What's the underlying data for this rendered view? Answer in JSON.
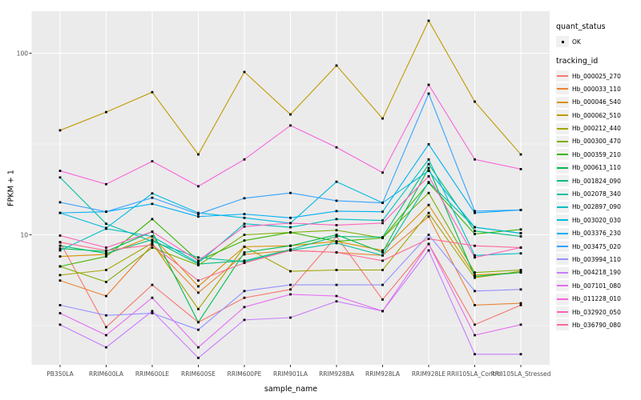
{
  "chart_data": {
    "type": "line",
    "xlabel": "sample_name",
    "ylabel": "FPKM + 1",
    "y_scale": "log10",
    "y_major_ticks": [
      10,
      100
    ],
    "y_tick_labels": [
      "10",
      "100"
    ],
    "y_minor_ticks": [
      3.162,
      31.62
    ],
    "ylim": [
      1.7,
      180
    ],
    "grid": "on",
    "legend_position": "right",
    "point_shape": "small-black-square",
    "categories": [
      "PB350LA",
      "RRIM600LA",
      "RRIM600LE",
      "RRIM600SE",
      "RRIM600PE",
      "RRIM901LA",
      "RRIM928BA",
      "RRIM928LA",
      "RRIM928LE",
      "RRII105LA_Control",
      "RRII105LA_Stressed"
    ],
    "series": [
      {
        "name": "Hb_000025_270",
        "color": "#F8766D",
        "values": [
          9.1,
          3.1,
          5.3,
          3.3,
          4.5,
          5.0,
          9.8,
          4.4,
          8.9,
          3.2,
          4.1
        ]
      },
      {
        "name": "Hb_000033_110",
        "color": "#EA8331",
        "values": [
          5.6,
          4.6,
          8.8,
          4.8,
          7.8,
          8.2,
          8.0,
          7.7,
          12.6,
          4.1,
          4.2
        ]
      },
      {
        "name": "Hb_000046_540",
        "color": "#D89000",
        "values": [
          7.6,
          7.8,
          9.8,
          5.2,
          8.6,
          8.7,
          9.2,
          8.2,
          14.6,
          6.0,
          6.2
        ]
      },
      {
        "name": "Hb_000062_510",
        "color": "#C09B00",
        "values": [
          37.6,
          47.4,
          61.0,
          27.7,
          78.8,
          46.0,
          85.5,
          43.7,
          151.0,
          54.1,
          27.7
        ]
      },
      {
        "name": "Hb_000212_440",
        "color": "#A3A500",
        "values": [
          6.0,
          6.4,
          9.0,
          3.9,
          8.6,
          6.3,
          6.4,
          6.4,
          13.2,
          5.8,
          6.3
        ]
      },
      {
        "name": "Hb_000300_470",
        "color": "#7CAE00",
        "values": [
          6.7,
          5.5,
          8.5,
          6.8,
          10.0,
          10.3,
          10.6,
          9.6,
          17.0,
          6.2,
          6.4
        ]
      },
      {
        "name": "Hb_000359_210",
        "color": "#39B600",
        "values": [
          6.7,
          7.6,
          12.2,
          7.2,
          9.3,
          10.3,
          9.2,
          9.6,
          19.3,
          10.1,
          10.7
        ]
      },
      {
        "name": "Hb_000613_110",
        "color": "#00BB4E",
        "values": [
          8.4,
          8.1,
          10.4,
          3.3,
          8.0,
          8.7,
          10.0,
          8.0,
          23.3,
          5.9,
          6.2
        ]
      },
      {
        "name": "Hb_001824_090",
        "color": "#00BF7D",
        "values": [
          8.7,
          7.9,
          9.4,
          6.9,
          7.2,
          8.3,
          9.8,
          9.7,
          24.5,
          10.5,
          9.8
        ]
      },
      {
        "name": "Hb_002078_340",
        "color": "#00C1A3",
        "values": [
          20.7,
          11.5,
          9.2,
          7.5,
          7.1,
          8.2,
          9.0,
          7.7,
          19.5,
          11.0,
          10.2
        ]
      },
      {
        "name": "Hb_002897_090",
        "color": "#00BFC4",
        "values": [
          8.2,
          10.8,
          9.8,
          7.0,
          11.5,
          11.0,
          12.2,
          12.0,
          26.0,
          7.7,
          7.9
        ]
      },
      {
        "name": "Hb_003020_030",
        "color": "#00BAE0",
        "values": [
          13.2,
          10.9,
          16.9,
          13.2,
          12.4,
          11.6,
          19.6,
          15.0,
          22.5,
          11.0,
          10.2
        ]
      },
      {
        "name": "Hb_003376_230",
        "color": "#00B0F6",
        "values": [
          13.2,
          13.4,
          14.8,
          12.6,
          13.0,
          12.4,
          13.5,
          13.4,
          31.5,
          13.2,
          13.7
        ]
      },
      {
        "name": "Hb_003475_020",
        "color": "#35A2FF",
        "values": [
          15.1,
          13.4,
          16.0,
          13.0,
          15.9,
          17.0,
          15.4,
          15.0,
          59.9,
          13.5,
          13.7
        ]
      },
      {
        "name": "Hb_003994_110",
        "color": "#9590FF",
        "values": [
          4.1,
          3.6,
          3.7,
          3.0,
          4.9,
          5.3,
          5.3,
          5.3,
          10.0,
          4.9,
          5.0
        ]
      },
      {
        "name": "Hb_004218_190",
        "color": "#C77CFF",
        "values": [
          3.2,
          2.4,
          3.8,
          2.1,
          3.4,
          3.5,
          4.3,
          3.8,
          8.2,
          2.2,
          2.2
        ]
      },
      {
        "name": "Hb_007101_080",
        "color": "#E76BF3",
        "values": [
          3.7,
          2.8,
          4.5,
          2.4,
          4.0,
          4.7,
          4.6,
          3.8,
          8.9,
          2.8,
          3.2
        ]
      },
      {
        "name": "Hb_011228_010",
        "color": "#FA62DB",
        "values": [
          22.5,
          19.0,
          25.4,
          18.5,
          26.0,
          40.0,
          30.3,
          22.0,
          67.0,
          26.0,
          23.0
        ]
      },
      {
        "name": "Hb_032920_050",
        "color": "#FF62BC",
        "values": [
          9.9,
          8.5,
          10.4,
          7.2,
          11.1,
          11.6,
          11.3,
          11.6,
          21.0,
          7.5,
          8.5
        ]
      },
      {
        "name": "Hb_036790_080",
        "color": "#FF6A98",
        "values": [
          9.1,
          8.2,
          8.8,
          5.6,
          7.0,
          8.2,
          8.0,
          7.2,
          9.5,
          8.7,
          8.5
        ]
      }
    ]
  },
  "legend": {
    "quant_status_title": "quant_status",
    "quant_status_items": [
      "OK"
    ],
    "tracking_title": "tracking_id"
  },
  "axes": {
    "x_title": "sample_name",
    "y_title": "FPKM + 1"
  },
  "colors": {
    "panel_bg": "#EBEBEB",
    "grid": "#FFFFFF",
    "axis_text": "#4D4D4D",
    "point": "#000000",
    "legend_key_bg": "#F0F0F0"
  }
}
